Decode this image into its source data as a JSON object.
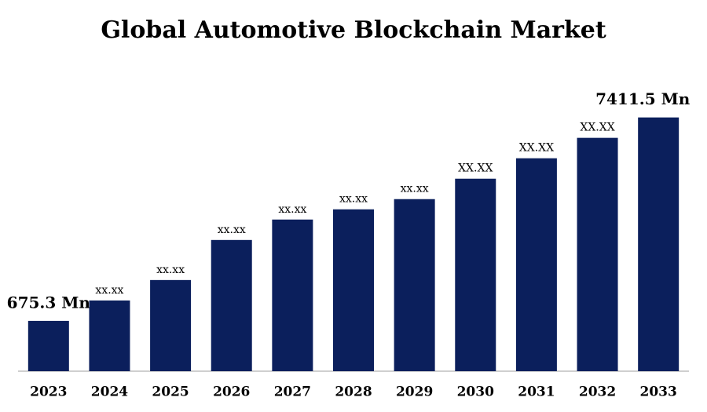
{
  "chart_data": {
    "type": "bar",
    "title": "Global Automotive Blockchain Market",
    "categories": [
      "2023",
      "2024",
      "2025",
      "2026",
      "2027",
      "2028",
      "2029",
      "2030",
      "2031",
      "2032",
      "2033"
    ],
    "values": [
      675.3,
      1352,
      2028,
      3354,
      4031,
      4369,
      4707,
      5383,
      6060,
      6736,
      7411.5
    ],
    "value_labels": [
      "675.3 Mn",
      "xx.xx",
      "xx.xx",
      "xx.xx",
      "xx.xx",
      "xx.xx",
      "xx.xx",
      "XX.XX",
      "XX.XX",
      "XX.XX",
      "7411.5 Mn"
    ],
    "color": "#0b1f5c",
    "ylim": [
      -990,
      8000
    ]
  }
}
